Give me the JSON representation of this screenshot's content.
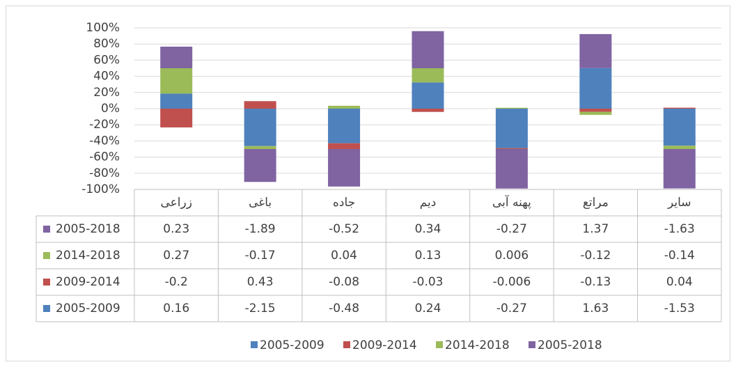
{
  "chart_data": {
    "type": "stack100",
    "categories": [
      "زراعی",
      "باغی",
      "جاده",
      "دیم",
      "پهنه آبی",
      "مراتع",
      "سایر"
    ],
    "series": [
      {
        "name": "2005-2009",
        "color": "#4f81bd",
        "values": [
          0.16,
          -2.15,
          -0.48,
          0.24,
          -0.27,
          1.63,
          -1.53
        ]
      },
      {
        "name": "2009-2014",
        "color": "#c0504d",
        "values": [
          -0.2,
          0.43,
          -0.08,
          -0.03,
          -0.006,
          -0.13,
          0.04
        ]
      },
      {
        "name": "2014-2018",
        "color": "#9bbb59",
        "values": [
          0.27,
          -0.17,
          0.04,
          0.13,
          0.006,
          -0.12,
          -0.14
        ]
      },
      {
        "name": "2005-2018",
        "color": "#8064a2",
        "values": [
          0.23,
          -1.89,
          -0.52,
          0.34,
          -0.27,
          1.37,
          -1.63
        ]
      }
    ],
    "ylim": [
      -1,
      1
    ],
    "yticks": [
      {
        "value": -1,
        "label": "-100%"
      },
      {
        "value": -0.8,
        "label": "-80%"
      },
      {
        "value": -0.6,
        "label": "-60%"
      },
      {
        "value": -0.4,
        "label": "-40%"
      },
      {
        "value": -0.2,
        "label": "-20%"
      },
      {
        "value": 0,
        "label": "0%"
      },
      {
        "value": 0.2,
        "label": "20%"
      },
      {
        "value": 0.4,
        "label": "40%"
      },
      {
        "value": 0.6,
        "label": "60%"
      },
      {
        "value": 0.8,
        "label": "80%"
      },
      {
        "value": 1,
        "label": "100%"
      }
    ],
    "grid": true,
    "legend": "bottom",
    "data_table": true
  }
}
